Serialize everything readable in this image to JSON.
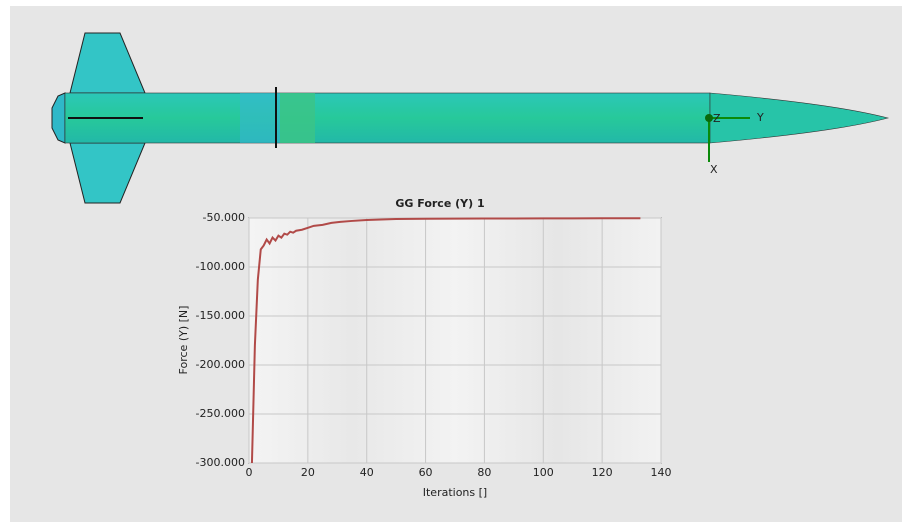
{
  "triad": {
    "y": "Y",
    "z": "Z",
    "x": "X"
  },
  "chart_data": {
    "type": "line",
    "title": "GG Force (Y) 1",
    "x_label": "Iterations []",
    "y_label": "Force (Y) [N]",
    "x": [
      1,
      2,
      3,
      4,
      5,
      6,
      7,
      8,
      9,
      10,
      11,
      12,
      13,
      14,
      15,
      16,
      18,
      20,
      22,
      25,
      28,
      31,
      35,
      40,
      45,
      50,
      60,
      70,
      80,
      90,
      100,
      110,
      120,
      133
    ],
    "series": [
      {
        "name": "GG Force (Y) 1",
        "color": "#b14a48",
        "values": [
          -300,
          -180,
          -113,
          -82,
          -78,
          -72,
          -76,
          -70,
          -73,
          -68,
          -70,
          -66,
          -67,
          -64,
          -65,
          -63,
          -62,
          -60,
          -58,
          -57,
          -55,
          -54,
          -53,
          -52,
          -51.5,
          -51,
          -50.8,
          -50.6,
          -50.5,
          -50.5,
          -50.4,
          -50.4,
          -50.3,
          -50.3
        ]
      }
    ],
    "xlim": [
      0,
      140
    ],
    "xticks": [
      0,
      20,
      40,
      60,
      80,
      100,
      120,
      140
    ],
    "ylim": [
      -300,
      -50
    ],
    "yticks": [
      {
        "value": -300,
        "label": "-300.000"
      },
      {
        "value": -250,
        "label": "-250.000"
      },
      {
        "value": -200,
        "label": "-200.000"
      },
      {
        "value": -150,
        "label": "-150.000"
      },
      {
        "value": -100,
        "label": "-100.000"
      },
      {
        "value": -50,
        "label": "-50.000"
      }
    ],
    "grid": true
  }
}
